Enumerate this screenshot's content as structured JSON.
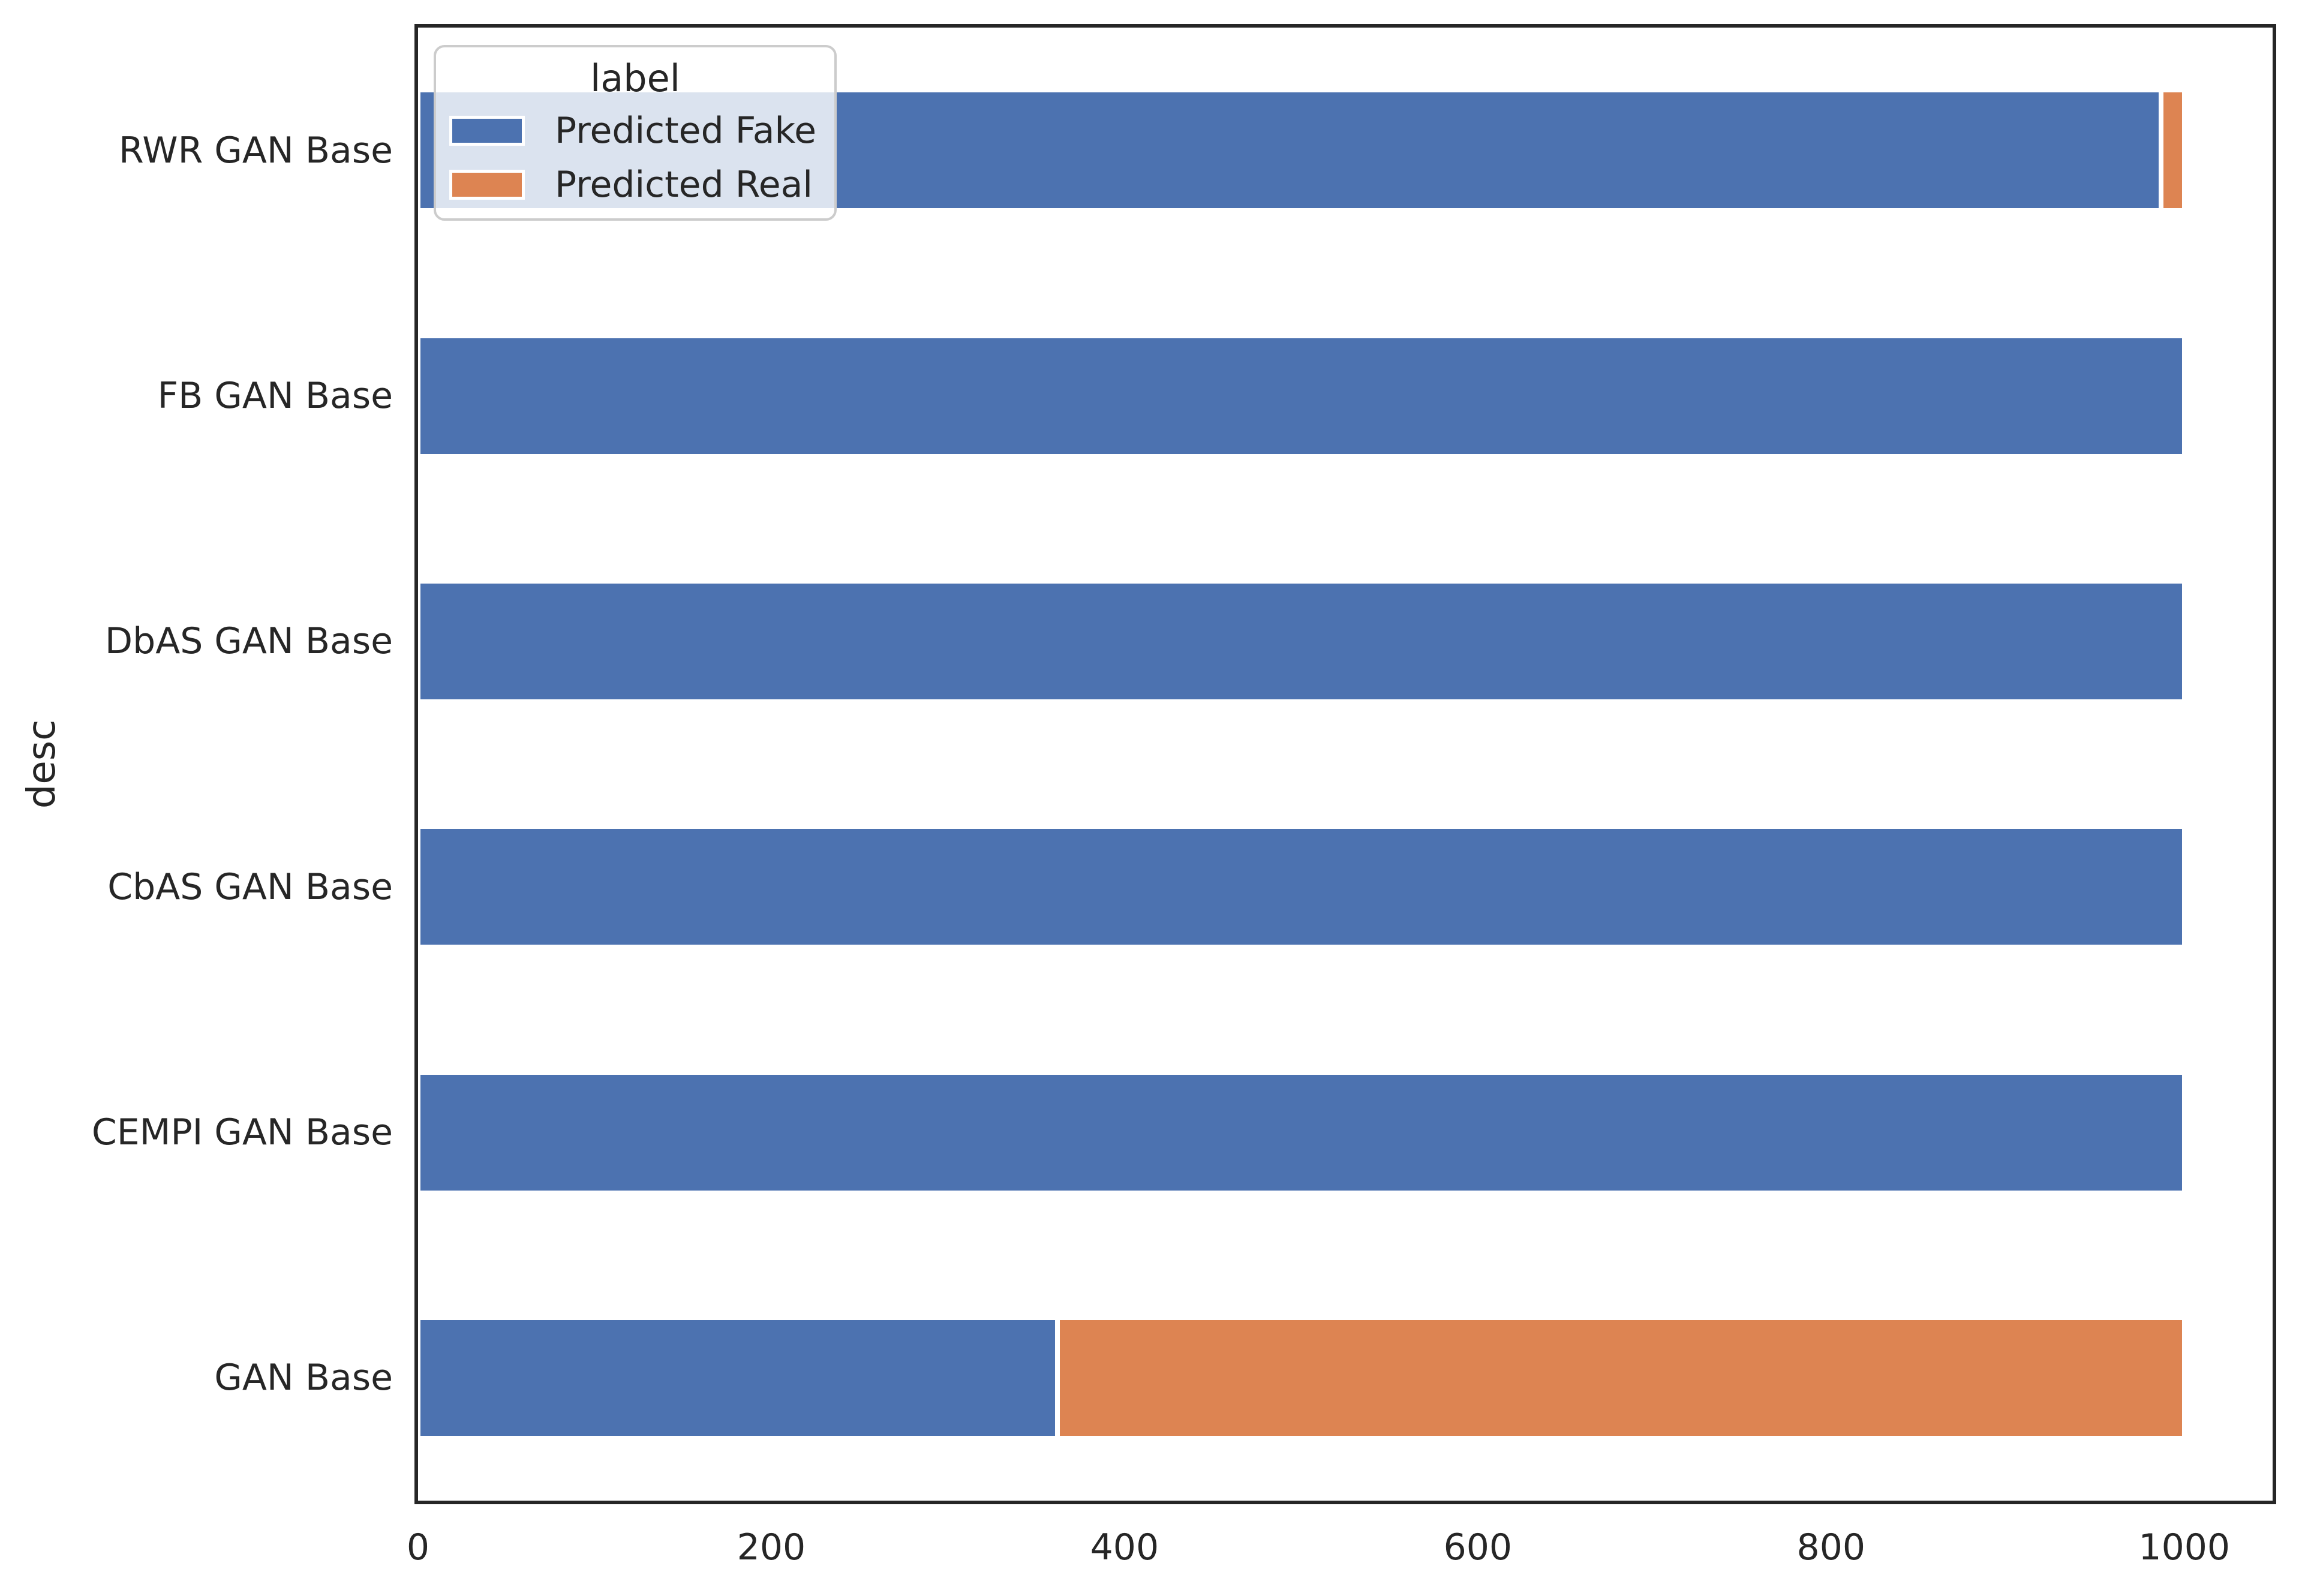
{
  "figure": {
    "ylabel": "desc",
    "background_color": "#ffffff",
    "spine_color": "#262626",
    "text_color": "#262626"
  },
  "legend": {
    "title": "label",
    "entries": [
      {
        "label": "Predicted Fake",
        "color": "#4c72b0"
      },
      {
        "label": "Predicted Real",
        "color": "#dd8452"
      }
    ]
  },
  "chart_data": {
    "type": "bar",
    "orientation": "horizontal",
    "stacked": true,
    "title": "",
    "xlabel": "",
    "ylabel": "desc",
    "categories": [
      "RWR GAN Base",
      "FB GAN Base",
      "DbAS GAN Base",
      "CbAS GAN Base",
      "CEMPI GAN Base",
      "GAN Base"
    ],
    "series": [
      {
        "name": "Predicted Fake",
        "color": "#4c72b0",
        "values": [
          987,
          1000,
          1000,
          1000,
          1000,
          362
        ]
      },
      {
        "name": "Predicted Real",
        "color": "#dd8452",
        "values": [
          13,
          0,
          0,
          0,
          0,
          638
        ]
      }
    ],
    "xlim": [
      0,
      1050
    ],
    "xticks": [
      0,
      200,
      400,
      600,
      800,
      1000
    ],
    "bar_total": 1000,
    "legend_position": "upper left",
    "grid": false,
    "bar_edge_color": "#ffffff"
  }
}
